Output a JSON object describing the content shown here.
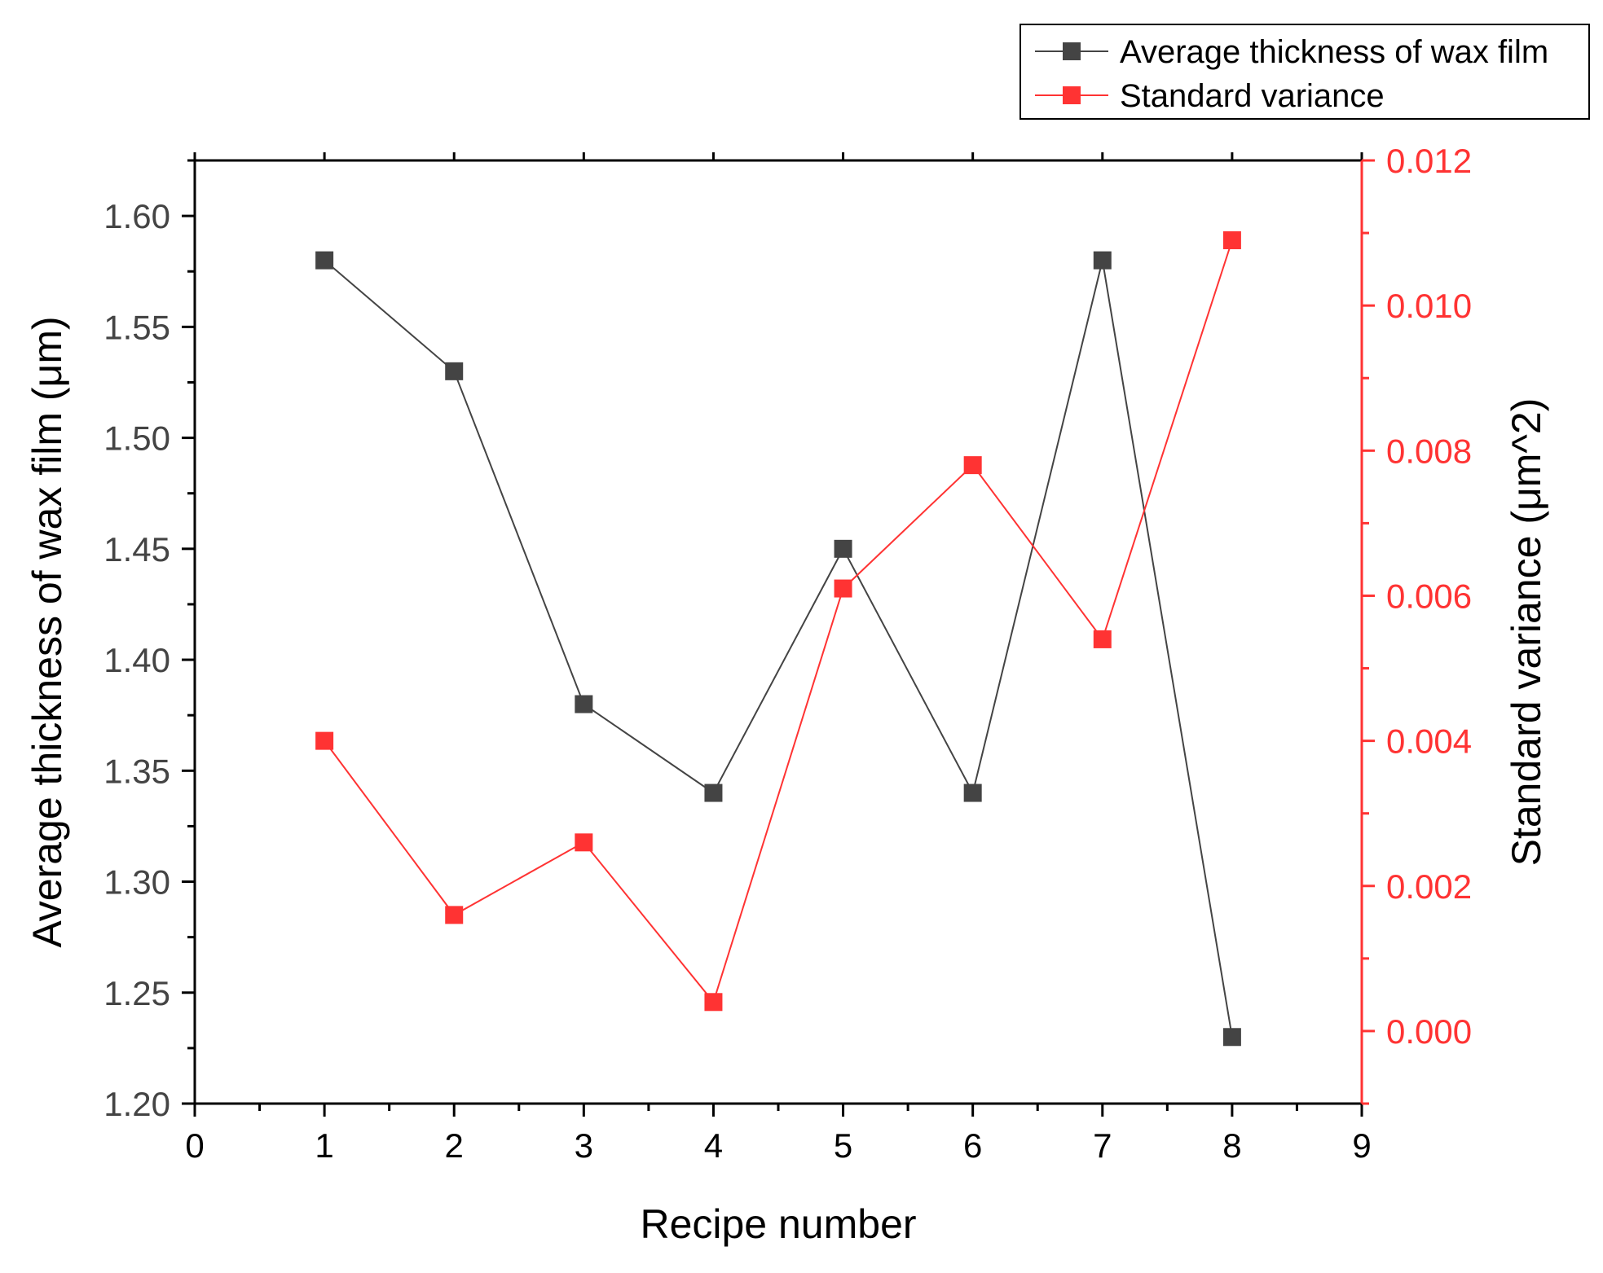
{
  "chart_data": {
    "type": "line",
    "title": "",
    "xlabel": "Recipe number",
    "ylabel": "Average thickness of wax film (μm)",
    "y2label": "Standard variance (μm^2)",
    "xlim": [
      0,
      9
    ],
    "ylim": [
      1.2,
      1.625
    ],
    "y2lim": [
      -0.001,
      0.012
    ],
    "x_ticks": [
      0,
      1,
      2,
      3,
      4,
      5,
      6,
      7,
      8,
      9
    ],
    "x_tick_labels": [
      "0",
      "1",
      "2",
      "3",
      "4",
      "5",
      "6",
      "7",
      "8",
      "9"
    ],
    "y_ticks": [
      1.2,
      1.25,
      1.3,
      1.35,
      1.4,
      1.45,
      1.5,
      1.55,
      1.6
    ],
    "y_tick_labels": [
      "1.20",
      "1.25",
      "1.30",
      "1.35",
      "1.40",
      "1.45",
      "1.50",
      "1.55",
      "1.60"
    ],
    "y2_ticks": [
      0.0,
      0.002,
      0.004,
      0.006,
      0.008,
      0.01,
      0.012
    ],
    "y2_tick_labels": [
      "0.000",
      "0.002",
      "0.004",
      "0.006",
      "0.008",
      "0.010",
      "0.012"
    ],
    "grid": false,
    "legend_position": "top-right",
    "x": [
      1,
      2,
      3,
      4,
      5,
      6,
      7,
      8
    ],
    "series": [
      {
        "name": "Average thickness of wax film",
        "axis": "left",
        "color": "#444444",
        "values": [
          1.58,
          1.53,
          1.38,
          1.34,
          1.45,
          1.34,
          1.58,
          1.23
        ]
      },
      {
        "name": "Standard variance",
        "axis": "right",
        "color": "#ff3333",
        "values": [
          0.004,
          0.0016,
          0.0026,
          0.0004,
          0.0061,
          0.0078,
          0.0054,
          0.0109
        ]
      }
    ],
    "colors": {
      "axis": "#000000",
      "right_axis": "#ff3333",
      "left_tick_text": "#444444"
    }
  }
}
